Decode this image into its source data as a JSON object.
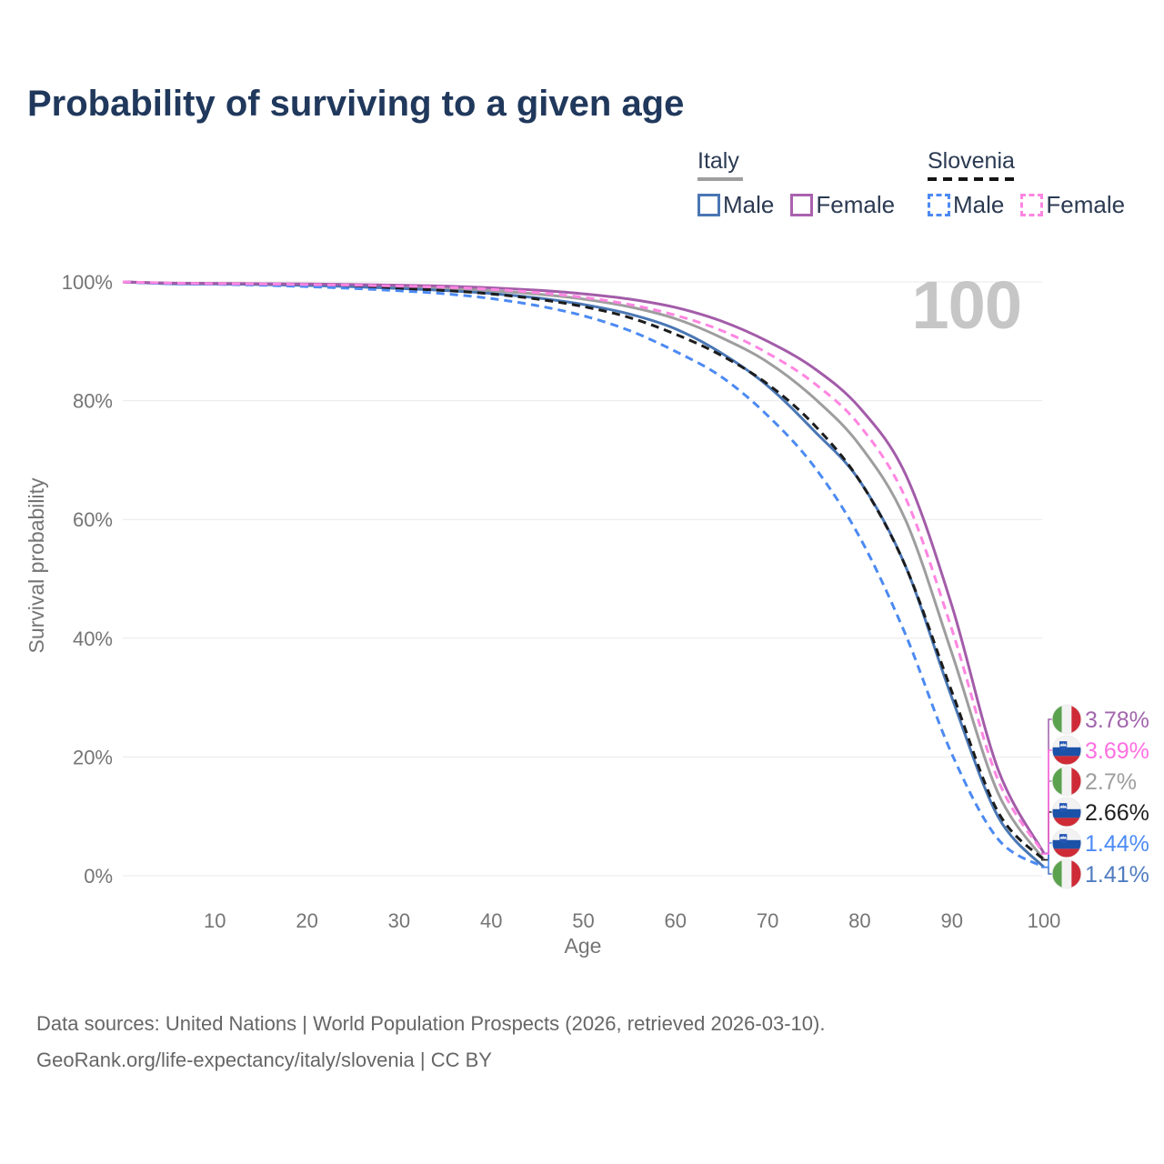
{
  "title": "Probability of surviving to a given age",
  "legend": {
    "groups": [
      {
        "country": "Italy",
        "line_style": "solid",
        "underline_color": "#9e9e9e",
        "entries": [
          {
            "label": "Male",
            "color": "#4a77b4"
          },
          {
            "label": "Female",
            "color": "#aa62ae"
          }
        ]
      },
      {
        "country": "Slovenia",
        "line_style": "dashed",
        "underline_color": "#141414",
        "entries": [
          {
            "label": "Male",
            "color": "#4c8af2"
          },
          {
            "label": "Female",
            "color": "#ff85e1"
          }
        ]
      }
    ]
  },
  "chart_data": {
    "type": "line",
    "title": "Probability of surviving to a given age",
    "xlabel": "Age",
    "ylabel": "Survival probability",
    "watermark": "100",
    "xlim": [
      0,
      100
    ],
    "ylim": [
      0,
      100
    ],
    "grid": "horizontal-only",
    "x_ticks": [
      "10",
      "20",
      "30",
      "40",
      "50",
      "60",
      "70",
      "80",
      "90",
      "100"
    ],
    "y_ticks": [
      "0%",
      "20%",
      "40%",
      "60%",
      "80%",
      "100%"
    ],
    "x": [
      0,
      5,
      10,
      15,
      20,
      25,
      30,
      35,
      40,
      45,
      50,
      55,
      60,
      65,
      70,
      75,
      80,
      85,
      90,
      95,
      100
    ],
    "series": [
      {
        "country": "Italy",
        "sex": "All",
        "style": "solid",
        "color": "#9e9e9e",
        "values": [
          100,
          99.75,
          99.7,
          99.62,
          99.52,
          99.38,
          99.18,
          98.92,
          98.52,
          97.95,
          97.1,
          95.8,
          93.8,
          90.6,
          86.5,
          80.5,
          72.5,
          59.8,
          37.5,
          14.0,
          2.7
        ],
        "end_label": {
          "text": "2.7%",
          "color": "#9e9e9e",
          "row": 2,
          "flag": "italy"
        }
      },
      {
        "country": "Italy",
        "sex": "Male",
        "style": "solid",
        "color": "#4a77b4",
        "values": [
          100,
          99.7,
          99.65,
          99.55,
          99.4,
          99.2,
          98.9,
          98.55,
          98.05,
          97.3,
          96.2,
          94.6,
          92.1,
          88.0,
          82.5,
          75.0,
          66.5,
          52.0,
          30.0,
          10.0,
          1.41
        ],
        "end_label": {
          "text": "1.41%",
          "color": "#4f7cc0",
          "row": 5,
          "flag": "italy"
        }
      },
      {
        "country": "Italy",
        "sex": "Female",
        "style": "solid",
        "color": "#a35ca9",
        "values": [
          100,
          99.8,
          99.75,
          99.7,
          99.65,
          99.55,
          99.45,
          99.3,
          99.0,
          98.6,
          98.0,
          97.1,
          95.7,
          93.4,
          90.0,
          85.5,
          78.8,
          67.5,
          45.5,
          18.0,
          3.78
        ],
        "end_label": {
          "text": "3.78%",
          "color": "#a265ad",
          "row": 0,
          "flag": "italy"
        }
      },
      {
        "country": "Slovenia",
        "sex": "All",
        "style": "dashed",
        "color": "#1c1c1c",
        "values": [
          100,
          99.75,
          99.65,
          99.55,
          99.38,
          99.18,
          98.9,
          98.55,
          97.98,
          97.1,
          95.85,
          94.0,
          91.2,
          87.6,
          82.8,
          76.0,
          66.5,
          52.0,
          31.0,
          10.8,
          2.66
        ],
        "end_label": {
          "text": "2.66%",
          "color": "#1f1f1f",
          "row": 3,
          "flag": "slovenia"
        }
      },
      {
        "country": "Slovenia",
        "sex": "Male",
        "style": "dashed",
        "color": "#4c8af2",
        "values": [
          100,
          99.7,
          99.6,
          99.45,
          99.2,
          98.9,
          98.5,
          98.0,
          97.2,
          96.0,
          94.3,
          91.8,
          88.3,
          84.0,
          77.5,
          69.0,
          57.0,
          40.5,
          20.5,
          6.2,
          1.44
        ],
        "end_label": {
          "text": "1.44%",
          "color": "#4c8bf5",
          "row": 4,
          "flag": "slovenia"
        }
      },
      {
        "country": "Slovenia",
        "sex": "Female",
        "style": "dashed",
        "color": "#ff85e1",
        "values": [
          100,
          99.8,
          99.7,
          99.65,
          99.55,
          99.45,
          99.3,
          99.1,
          98.75,
          98.2,
          97.4,
          96.2,
          94.4,
          91.8,
          88.0,
          83.0,
          75.8,
          63.5,
          41.5,
          16.2,
          3.69
        ],
        "end_label": {
          "text": "3.69%",
          "color": "#ff6fe1",
          "row": 1,
          "flag": "slovenia"
        }
      }
    ]
  },
  "footer": {
    "line1": "Data sources: United Nations | World Population Prospects (2026, retrieved 2026-03-10).",
    "line2": "GeoRank.org/life-expectancy/italy/slovenia | CC BY"
  }
}
